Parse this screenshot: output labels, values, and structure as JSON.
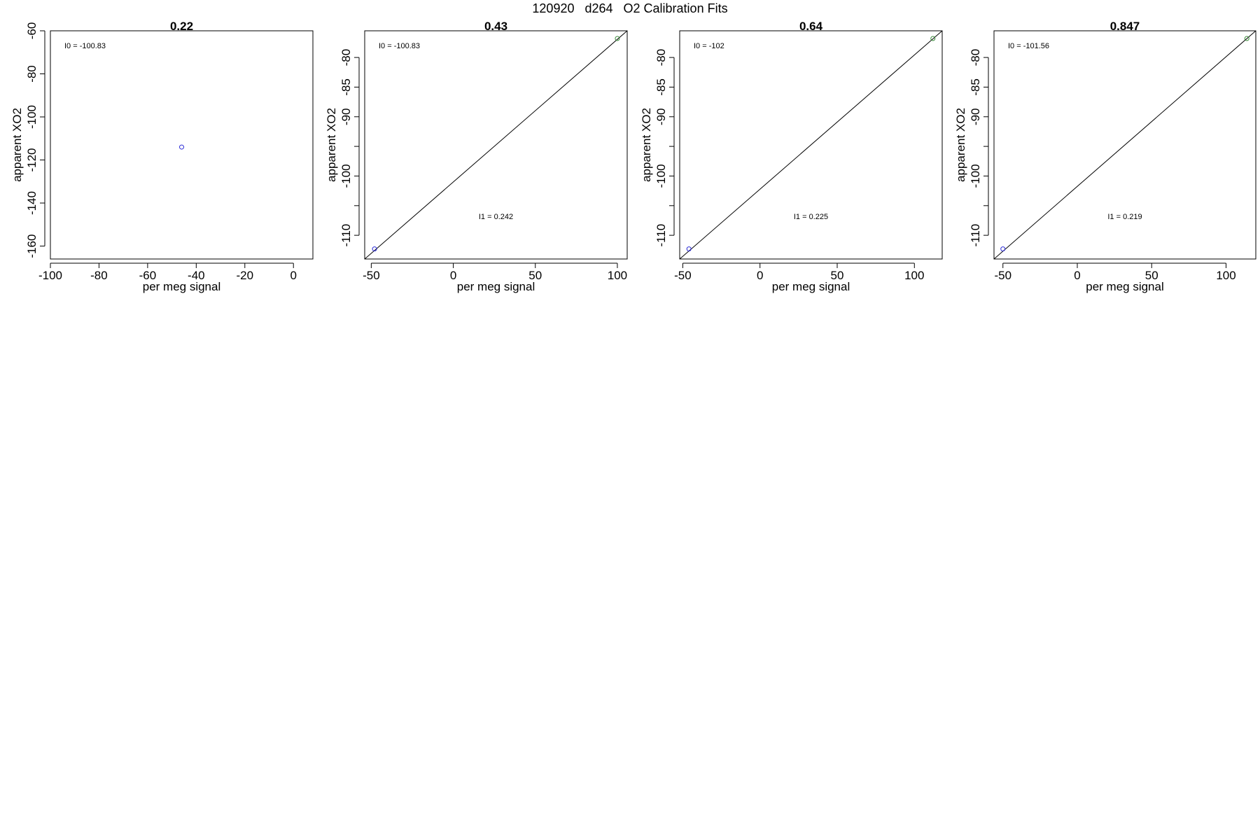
{
  "figure_title": "120920   d264   O2 Calibration Fits",
  "colors": {
    "blue": "#2b2bd6",
    "green": "#3a8a3a",
    "axis": "#000000",
    "fit_line": "#000000"
  },
  "chart_data": [
    {
      "type": "scatter",
      "title": "0.22",
      "xlabel": "per meg signal",
      "ylabel": "apparent XO2",
      "xlim": [
        -100,
        8
      ],
      "ylim": [
        -166,
        -60
      ],
      "xticks": [
        -100,
        -80,
        -60,
        -40,
        -20,
        0
      ],
      "yticks": [
        -60,
        -80,
        -100,
        -120,
        -140,
        -160
      ],
      "points": [
        {
          "x": -46,
          "y": -114,
          "color": "blue"
        }
      ],
      "fit_line": null,
      "annotations": [
        {
          "label": "I0 = ",
          "value": "-100.83"
        }
      ]
    },
    {
      "type": "scatter",
      "title": "0.43",
      "xlabel": "per meg signal",
      "ylabel": "apparent XO2",
      "xlim": [
        -54,
        106
      ],
      "ylim": [
        -114,
        -75.5
      ],
      "xticks": [
        -50,
        0,
        50,
        100
      ],
      "yticks": [
        -80,
        -85,
        -90,
        -95,
        -100,
        -105,
        -110
      ],
      "yticklabels": [
        "-80",
        "-85",
        "-90",
        "",
        "-100",
        "",
        "-110"
      ],
      "points": [
        {
          "x": -48,
          "y": -112.3,
          "color": "blue"
        },
        {
          "x": 100,
          "y": -76.8,
          "color": "green"
        }
      ],
      "fit_line": [
        [
          -54,
          -114
        ],
        [
          106,
          -75.5
        ]
      ],
      "annotations": [
        {
          "label": "I0 = ",
          "value": "-100.83"
        },
        {
          "label": "I1 = ",
          "value": "0.242"
        }
      ]
    },
    {
      "type": "scatter",
      "title": "0.64",
      "xlabel": "per meg signal",
      "ylabel": "apparent XO2",
      "xlim": [
        -52,
        118
      ],
      "ylim": [
        -114,
        -75.5
      ],
      "xticks": [
        -50,
        0,
        50,
        100
      ],
      "yticks": [
        -80,
        -85,
        -90,
        -95,
        -100,
        -105,
        -110
      ],
      "yticklabels": [
        "-80",
        "-85",
        "-90",
        "",
        "-100",
        "",
        "-110"
      ],
      "points": [
        {
          "x": -46,
          "y": -112.3,
          "color": "blue"
        },
        {
          "x": 112,
          "y": -76.8,
          "color": "green"
        }
      ],
      "fit_line": [
        [
          -52,
          -114
        ],
        [
          118,
          -75.5
        ]
      ],
      "annotations": [
        {
          "label": "I0 = ",
          "value": "-102"
        },
        {
          "label": "I1 = ",
          "value": "0.225"
        }
      ]
    },
    {
      "type": "scatter",
      "title": "0.847",
      "xlabel": "per meg signal",
      "ylabel": "apparent XO2",
      "xlim": [
        -56,
        120
      ],
      "ylim": [
        -114,
        -75.5
      ],
      "xticks": [
        -50,
        0,
        50,
        100
      ],
      "yticks": [
        -80,
        -85,
        -90,
        -95,
        -100,
        -105,
        -110
      ],
      "yticklabels": [
        "-80",
        "-85",
        "-90",
        "",
        "-100",
        "",
        "-110"
      ],
      "points": [
        {
          "x": -50,
          "y": -112.3,
          "color": "blue"
        },
        {
          "x": 114,
          "y": -76.8,
          "color": "green"
        }
      ],
      "fit_line": [
        [
          -56,
          -114
        ],
        [
          120,
          -75.5
        ]
      ],
      "annotations": [
        {
          "label": "I0 = ",
          "value": "-101.56"
        },
        {
          "label": "I1 = ",
          "value": "0.219"
        }
      ]
    }
  ]
}
